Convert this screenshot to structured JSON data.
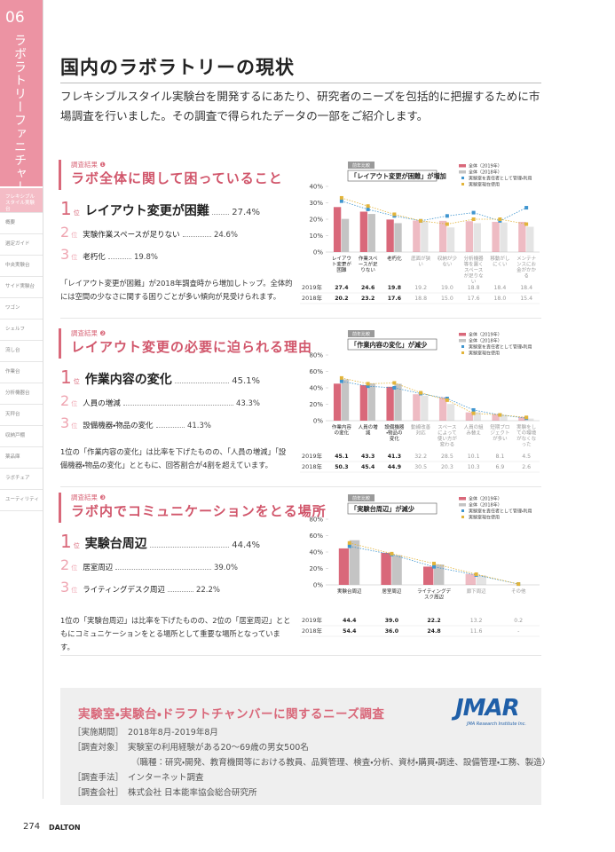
{
  "sidebar": {
    "number": "06",
    "title": "ラボラトリーファニチャー",
    "nav": [
      "フレキシブルスタイル実験台",
      "概要",
      "選定ガイド",
      "中央実験台",
      "サイド実験台",
      "ワゴン",
      "シェルフ",
      "流し台",
      "作業台",
      "分析機器台",
      "天秤台",
      "収納戸棚",
      "薬品庫",
      "ラボチェア",
      "ユーティリティ"
    ]
  },
  "header": {
    "title": "国内のラボラトリーの現状",
    "intro": "フレキシブルスタイル実験台を開発するにあたり、研究者のニーズを包括的に把握するために市場調査を行いました。その調査で得られたデータの一部をご紹介します。"
  },
  "sections": [
    {
      "label": "調査結果 ❶",
      "heading": "ラボ全体に関して困っていること",
      "ranks": [
        {
          "rank": "1",
          "unit": "位",
          "label": "レイアウト変更が困難",
          "value": "27.4%"
        },
        {
          "rank": "2",
          "unit": "位",
          "label": "実験作業スペースが足りない",
          "value": "24.6%"
        },
        {
          "rank": "3",
          "unit": "位",
          "label": "老朽化",
          "value": "19.8%"
        }
      ],
      "note": "「レイアウト変更が困難」が2018年調査時から増加しトップ。全体的には空間の少なさに関する困りごとが多い傾向が見受けられます。"
    },
    {
      "label": "調査結果 ❷",
      "heading": "レイアウト変更の必要に迫られる理由",
      "ranks": [
        {
          "rank": "1",
          "unit": "位",
          "label": "作業内容の変化",
          "value": "45.1%"
        },
        {
          "rank": "2",
          "unit": "位",
          "label": "人員の増減",
          "value": "43.3%"
        },
        {
          "rank": "3",
          "unit": "位",
          "label": "設備機器・物品の変化",
          "value": "41.3%"
        }
      ],
      "note": "1位の「作業内容の変化」は比率を下げたものの、「人員の増減」「設備機器・物品の変化」とともに、回答割合が4割を超えています。"
    },
    {
      "label": "調査結果 ❸",
      "heading": "ラボ内でコミュニケーションをとる場所",
      "ranks": [
        {
          "rank": "1",
          "unit": "位",
          "label": "実験台周辺",
          "value": "44.4%"
        },
        {
          "rank": "2",
          "unit": "位",
          "label": "居室周辺",
          "value": "39.0%"
        },
        {
          "rank": "3",
          "unit": "位",
          "label": "ライティングデスク周辺",
          "value": "22.2%"
        }
      ],
      "note": "1位の「実験台周辺」は比率を下げたものの、2位の「居室周辺」とともにコミュニケーションをとる場所として重要な場所となっています。"
    }
  ],
  "chart_data": [
    {
      "type": "bar",
      "badge": "前年比較",
      "callout": "「レイアウト変更が困難」が増加",
      "categories": [
        "レイアウト変更が困難",
        "作業スペースが足りない",
        "老朽化",
        "底面が狭い",
        "収納が少ない",
        "分析機器等を置くスペースが足りない",
        "移動がしにくい",
        "メンテナンスにお金がかかる"
      ],
      "series": [
        {
          "name": "全体（2019年）",
          "table_label": "2019年",
          "color": "#d9687a",
          "values": [
            27.4,
            24.6,
            19.8,
            19.2,
            19.0,
            18.8,
            18.4,
            18.4
          ],
          "value_labels": [
            "27.4",
            "24.6",
            "19.8",
            "19.2",
            "19.0",
            "18.8",
            "18.4",
            "18.4"
          ]
        },
        {
          "name": "全体（2018年）",
          "table_label": "2018年",
          "color": "#c4c4c4",
          "values": [
            20.2,
            23.2,
            17.6,
            18.8,
            15.0,
            17.6,
            18.0,
            15.4
          ],
          "value_labels": [
            "20.2",
            "23.2",
            "17.6",
            "18.8",
            "15.0",
            "17.6",
            "18.0",
            "15.4"
          ]
        },
        {
          "name": "実験室を責任者として管理・利用",
          "type": "line",
          "color": "#3f95cf",
          "values": [
            31,
            26,
            22,
            19,
            22,
            24,
            19,
            27
          ]
        },
        {
          "name": "実験室現在使用",
          "type": "line",
          "color": "#e2b43a",
          "values": [
            33,
            28,
            23,
            19,
            17,
            20,
            20,
            17
          ]
        }
      ],
      "ylim": [
        0,
        40
      ],
      "yticks": [
        {
          "value": 0,
          "label": "0%"
        },
        {
          "value": 10,
          "label": "10%"
        },
        {
          "value": 20,
          "label": "20%"
        },
        {
          "value": 30,
          "label": "30%"
        },
        {
          "value": 40,
          "label": "40%"
        }
      ]
    },
    {
      "type": "bar",
      "badge": "前年比較",
      "callout": "「作業内容の変化」が減少",
      "categories": [
        "作業内容の変化",
        "人員の増減",
        "設備機器・物品の変化",
        "動線改善対応",
        "スペースによって使い方が変わる",
        "人員の組み替え",
        "短期プロジェクトが多い",
        "実験をしての環境がなくなった"
      ],
      "series": [
        {
          "name": "全体（2019年）",
          "table_label": "2019年",
          "color": "#d9687a",
          "values": [
            45.1,
            43.3,
            41.3,
            32.2,
            28.5,
            10.1,
            8.1,
            4.5
          ],
          "value_labels": [
            "45.1",
            "43.3",
            "41.3",
            "32.2",
            "28.5",
            "10.1",
            "8.1",
            "4.5"
          ]
        },
        {
          "name": "全体（2018年）",
          "table_label": "2018年",
          "color": "#c4c4c4",
          "values": [
            50.3,
            45.4,
            44.9,
            30.5,
            20.3,
            10.3,
            6.9,
            2.6
          ],
          "value_labels": [
            "50.3",
            "45.4",
            "44.9",
            "30.5",
            "20.3",
            "10.3",
            "6.9",
            "2.6"
          ]
        },
        {
          "name": "実験室を責任者として管理・利用",
          "type": "line",
          "color": "#3f95cf",
          "values": [
            48,
            42,
            40,
            33,
            27,
            13,
            7,
            3
          ]
        },
        {
          "name": "実験室現在使用",
          "type": "line",
          "color": "#e2b43a",
          "values": [
            52,
            45,
            46,
            34,
            25,
            9,
            7,
            4
          ]
        }
      ],
      "ylim": [
        0,
        80
      ],
      "yticks": [
        {
          "value": 0,
          "label": "0%"
        },
        {
          "value": 20,
          "label": "20%"
        },
        {
          "value": 40,
          "label": "40%"
        },
        {
          "value": 60,
          "label": "60%"
        },
        {
          "value": 80,
          "label": "80%"
        }
      ]
    },
    {
      "type": "bar",
      "badge": "前年比較",
      "callout": "「実験台周辺」が減少",
      "categories": [
        "実験台周辺",
        "居室周辺",
        "ライティングデスク周辺",
        "廊下周辺",
        "その他"
      ],
      "series": [
        {
          "name": "全体（2019年）",
          "table_label": "2019年",
          "color": "#d9687a",
          "values": [
            44.4,
            39.0,
            22.2,
            13.2,
            0.2
          ],
          "value_labels": [
            "44.4",
            "39.0",
            "22.2",
            "13.2",
            "0.2"
          ]
        },
        {
          "name": "全体（2018年）",
          "table_label": "2018年",
          "color": "#c4c4c4",
          "values": [
            54.4,
            36.0,
            24.8,
            11.6,
            null
          ],
          "value_labels": [
            "54.4",
            "36.0",
            "24.8",
            "11.6",
            "-"
          ]
        },
        {
          "name": "実験室を責任者として管理・利用",
          "type": "line",
          "color": "#3f95cf",
          "values": [
            47,
            37,
            22,
            12,
            1
          ]
        },
        {
          "name": "実験室現在使用",
          "type": "line",
          "color": "#e2b43a",
          "values": [
            51,
            38,
            26,
            13,
            1
          ]
        }
      ],
      "ylim": [
        0,
        80
      ],
      "yticks": [
        {
          "value": 0,
          "label": "0%"
        },
        {
          "value": 20,
          "label": "20%"
        },
        {
          "value": 40,
          "label": "40%"
        },
        {
          "value": 60,
          "label": "60%"
        },
        {
          "value": 80,
          "label": "80%"
        }
      ]
    }
  ],
  "survey": {
    "title": "実験室・実験台・ドラフトチャンバーに関するニーズ調査",
    "logo": "JMAR",
    "logo_sub": "JMA Research Institute Inc.",
    "items": [
      {
        "label": "［実施期間］",
        "text": "2018年8月-2019年8月"
      },
      {
        "label": "［調査対象］",
        "text": "実験室の利用経験がある20～69歳の男女500名",
        "detail": "（職種：研究・開発、教育機関等における教員、品質管理、検査・分析、資材・購買・調達、設備管理・工務、製造）"
      },
      {
        "label": "［調査手法］",
        "text": "インターネット調査"
      },
      {
        "label": "［調査会社］",
        "text": "株式会社 日本能率協会総合研究所"
      }
    ]
  },
  "footer": {
    "page": "274",
    "brand": "DALTON"
  }
}
